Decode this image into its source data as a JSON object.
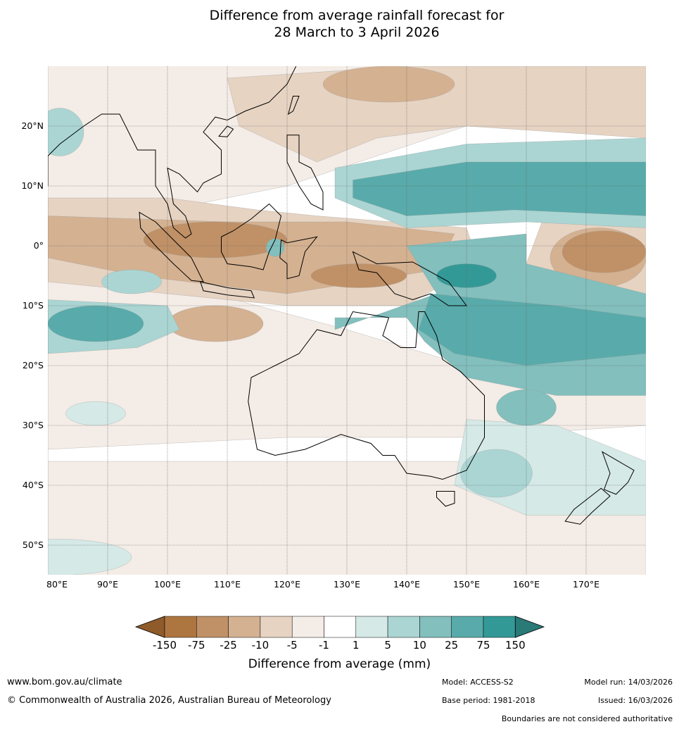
{
  "title": {
    "line1": "Difference from average rainfall forecast for",
    "line2": "28 March to 3 April 2026"
  },
  "map": {
    "lat_ticks": [
      "20°N",
      "10°N",
      "0°",
      "10°S",
      "20°S",
      "30°S",
      "40°S",
      "50°S"
    ],
    "lat_values": [
      20,
      10,
      0,
      -10,
      -20,
      -30,
      -40,
      -50
    ],
    "lon_ticks": [
      "80°E",
      "90°E",
      "100°E",
      "110°E",
      "120°E",
      "130°E",
      "140°E",
      "150°E",
      "160°E",
      "170°E"
    ],
    "lon_values": [
      80,
      90,
      100,
      110,
      120,
      130,
      140,
      150,
      160,
      170
    ],
    "extent": {
      "lon": [
        80,
        180
      ],
      "lat": [
        -55,
        30
      ]
    }
  },
  "colorbar": {
    "labels": [
      "-150",
      "-75",
      "-25",
      "-10",
      "-5",
      "-1",
      "1",
      "5",
      "10",
      "25",
      "75",
      "150"
    ],
    "colors": [
      "#ad7540",
      "#c09167",
      "#d4b191",
      "#e6d3c2",
      "#f4ece6",
      "#ffffff",
      "#d5e9e7",
      "#aad5d3",
      "#82bfbd",
      "#58abaa",
      "#339996"
    ],
    "extend_low": "#8f5b2a",
    "extend_high": "#2a7a78",
    "title": "Difference from average (mm)"
  },
  "footer": {
    "url": "www.bom.gov.au/climate",
    "copyright": "© Commonwealth of Australia 2026, Australian Bureau of Meteorology",
    "model": "Model: ACCESS-S2",
    "model_run": "Model run: 14/03/2026",
    "base_period": "Base period: 1981-2018",
    "issued": "Issued: 16/03/2026",
    "disclaimer": "Boundaries are not considered authoritative"
  }
}
